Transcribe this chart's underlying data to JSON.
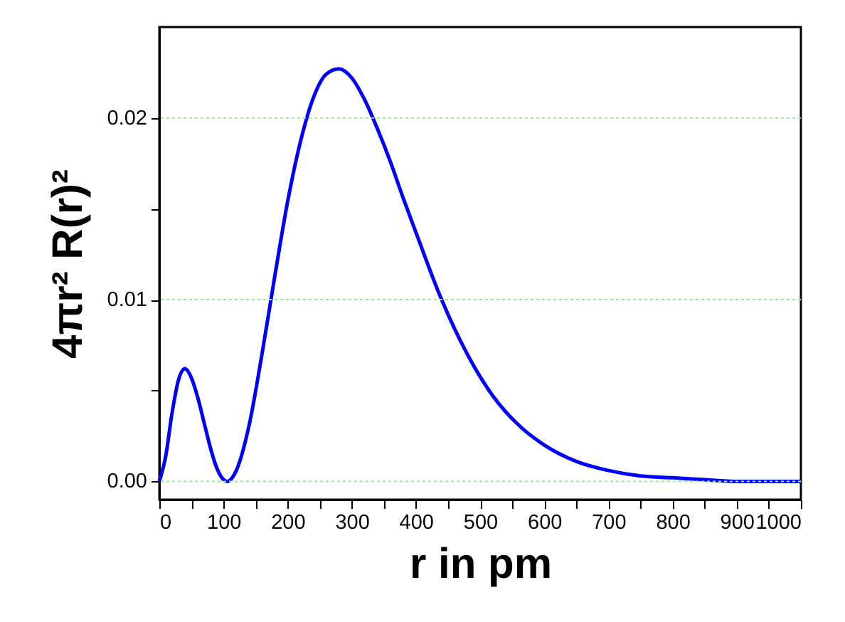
{
  "chart_data": {
    "type": "line",
    "xlabel": "r in pm",
    "ylabel": "4πr² R(r)²",
    "x": [
      0,
      10,
      20,
      30,
      40,
      50,
      60,
      70,
      80,
      90,
      100,
      106,
      120,
      140,
      160,
      180,
      200,
      220,
      240,
      260,
      280,
      300,
      320,
      340,
      360,
      380,
      400,
      440,
      480,
      520,
      560,
      600,
      650,
      700,
      750,
      800,
      850,
      900,
      950,
      1000
    ],
    "series": [
      {
        "color": "#0000ff",
        "values": [
          0,
          0.0014,
          0.0038,
          0.0056,
          0.0062,
          0.0057,
          0.0046,
          0.0032,
          0.0018,
          0.0007,
          0.0001,
          0,
          0.0006,
          0.0031,
          0.007,
          0.0113,
          0.0154,
          0.0187,
          0.0211,
          0.0224,
          0.0227,
          0.0222,
          0.021,
          0.0194,
          0.0176,
          0.0156,
          0.0137,
          0.01,
          0.007,
          0.0047,
          0.0031,
          0.002,
          0.0011,
          0.0006,
          0.0003,
          0.0002,
          0.0001,
          0,
          0,
          0
        ]
      }
    ],
    "xlim": [
      0,
      1000
    ],
    "xticks": [
      0,
      {
        "value": 50,
        "label": null
      },
      100,
      {
        "value": 150,
        "label": null
      },
      200,
      {
        "value": 250,
        "label": null
      },
      300,
      {
        "value": 350,
        "label": null
      },
      400,
      {
        "value": 450,
        "label": null
      },
      500,
      {
        "value": 550,
        "label": null
      },
      600,
      {
        "value": 650,
        "label": null
      },
      700,
      {
        "value": 750,
        "label": null
      },
      800,
      {
        "value": 850,
        "label": null
      },
      900,
      {
        "value": 950,
        "label": null
      },
      1000
    ],
    "ylim": [
      -0.001,
      0.025
    ],
    "yticks": [
      {
        "value": 0,
        "label": "0.00"
      },
      {
        "value": 0.005,
        "label": null
      },
      0.01,
      {
        "value": 0.015,
        "label": null
      },
      0.02
    ],
    "grid": "y",
    "marker": "none",
    "line_style": "solid"
  }
}
